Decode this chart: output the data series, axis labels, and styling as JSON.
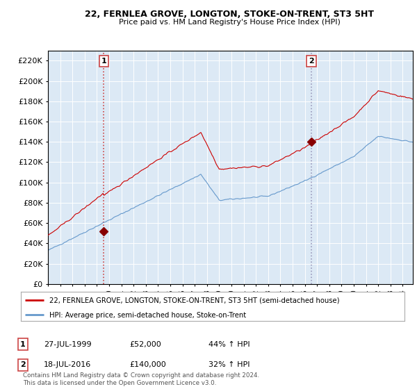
{
  "title": "22, FERNLEA GROVE, LONGTON, STOKE-ON-TRENT, ST3 5HT",
  "subtitle": "Price paid vs. HM Land Registry's House Price Index (HPI)",
  "ylabel_ticks": [
    0,
    20000,
    40000,
    60000,
    80000,
    100000,
    120000,
    140000,
    160000,
    180000,
    200000,
    220000
  ],
  "ylim": [
    0,
    230000
  ],
  "xlim_start": 1995.0,
  "xlim_end": 2024.83,
  "background_color": "#dce6f0",
  "plot_bg_color": "#dce9f5",
  "red_line_color": "#cc0000",
  "blue_line_color": "#6699cc",
  "sale1_dashed_color": "#cc4444",
  "sale2_dashed_color": "#9999bb",
  "legend_label_red": "22, FERNLEA GROVE, LONGTON, STOKE-ON-TRENT, ST3 5HT (semi-detached house)",
  "legend_label_blue": "HPI: Average price, semi-detached house, Stoke-on-Trent",
  "sale1_year": 1999.57,
  "sale1_price": 52000,
  "sale2_year": 2016.54,
  "sale2_price": 140000,
  "sale1_date": "27-JUL-1999",
  "sale1_pct": "44% ↑ HPI",
  "sale2_date": "18-JUL-2016",
  "sale2_pct": "32% ↑ HPI",
  "footer": "Contains HM Land Registry data © Crown copyright and database right 2024.\nThis data is licensed under the Open Government Licence v3.0."
}
